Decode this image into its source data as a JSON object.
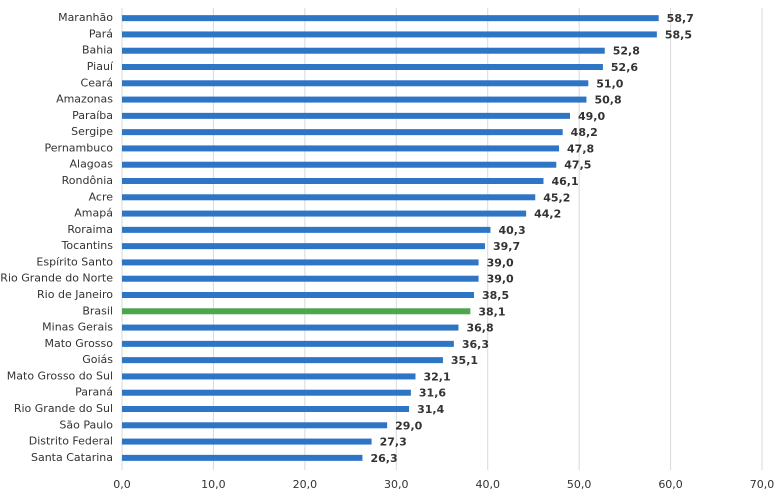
{
  "chart_data": {
    "type": "barh",
    "categories": [
      "Maranhão",
      "Pará",
      "Bahia",
      "Piauí",
      "Ceará",
      "Amazonas",
      "Paraíba",
      "Sergipe",
      "Pernambuco",
      "Alagoas",
      "Rondônia",
      "Acre",
      "Amapá",
      "Roraima",
      "Tocantins",
      "Espírito Santo",
      "Rio Grande do Norte",
      "Rio de Janeiro",
      "Brasil",
      "Minas Gerais",
      "Mato Grosso",
      "Goiás",
      "Mato Grosso do Sul",
      "Paraná",
      "Rio Grande do Sul",
      "São Paulo",
      "Distrito Federal",
      "Santa Catarina"
    ],
    "values": [
      58.7,
      58.5,
      52.8,
      52.6,
      51.0,
      50.8,
      49.0,
      48.2,
      47.8,
      47.5,
      46.1,
      45.2,
      44.2,
      40.3,
      39.7,
      39.0,
      39.0,
      38.5,
      38.1,
      36.8,
      36.3,
      35.1,
      32.1,
      31.6,
      31.4,
      29.0,
      27.3,
      26.3
    ],
    "value_labels": [
      "58,7",
      "58,5",
      "52,8",
      "52,6",
      "51,0",
      "50,8",
      "49,0",
      "48,2",
      "47,8",
      "47,5",
      "46,1",
      "45,2",
      "44,2",
      "40,3",
      "39,7",
      "39,0",
      "39,0",
      "38,5",
      "38,1",
      "36,8",
      "36,3",
      "35,1",
      "32,1",
      "31,6",
      "31,4",
      "29,0",
      "27,3",
      "26,3"
    ],
    "colors": [
      "#2e75c6",
      "#2e75c6",
      "#2e75c6",
      "#2e75c6",
      "#2e75c6",
      "#2e75c6",
      "#2e75c6",
      "#2e75c6",
      "#2e75c6",
      "#2e75c6",
      "#2e75c6",
      "#2e75c6",
      "#2e75c6",
      "#2e75c6",
      "#2e75c6",
      "#2e75c6",
      "#2e75c6",
      "#2e75c6",
      "#4ca64c",
      "#2e75c6",
      "#2e75c6",
      "#2e75c6",
      "#2e75c6",
      "#2e75c6",
      "#2e75c6",
      "#2e75c6",
      "#2e75c6",
      "#2e75c6"
    ],
    "xlim": [
      0,
      70
    ],
    "xticks": [
      {
        "value": 0,
        "label": "0,0"
      },
      {
        "value": 10,
        "label": "10,0"
      },
      {
        "value": 20,
        "label": "20,0"
      },
      {
        "value": 30,
        "label": "30,0"
      },
      {
        "value": 40,
        "label": "40,0"
      },
      {
        "value": 50,
        "label": "50,0"
      },
      {
        "value": 60,
        "label": "60,0"
      },
      {
        "value": 70,
        "label": "70,0"
      }
    ],
    "grid": true
  }
}
